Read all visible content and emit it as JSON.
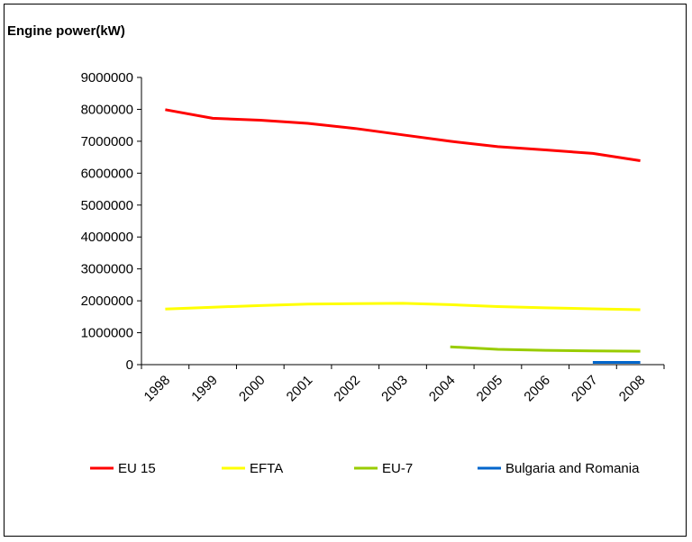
{
  "chart_data": {
    "type": "line",
    "title": "Engine power(kW)",
    "xlabel": "",
    "ylabel": "",
    "categories": [
      "1998",
      "1999",
      "2000",
      "2001",
      "2002",
      "2003",
      "2004",
      "2005",
      "2006",
      "2007",
      "2008"
    ],
    "ylim": [
      0,
      9000000
    ],
    "yticks": [
      "0",
      "1000000",
      "2000000",
      "3000000",
      "4000000",
      "5000000",
      "6000000",
      "7000000",
      "8000000",
      "9000000"
    ],
    "grid": false,
    "legend_position": "bottom",
    "series": [
      {
        "name": "EU 15",
        "color": "#ff0000",
        "values": [
          7990000,
          7720000,
          7660000,
          7560000,
          7400000,
          7200000,
          7000000,
          6830000,
          6730000,
          6620000,
          6390000
        ]
      },
      {
        "name": "EFTA",
        "color": "#ffff00",
        "values": [
          1740000,
          1800000,
          1850000,
          1900000,
          1910000,
          1920000,
          1880000,
          1820000,
          1780000,
          1750000,
          1720000
        ]
      },
      {
        "name": "EU-7",
        "color": "#99cc00",
        "values": [
          null,
          null,
          null,
          null,
          null,
          null,
          560000,
          480000,
          450000,
          430000,
          420000
        ]
      },
      {
        "name": "Bulgaria and Romania",
        "color": "#0066cc",
        "values": [
          null,
          null,
          null,
          null,
          null,
          null,
          null,
          null,
          null,
          70000,
          70000
        ]
      }
    ]
  }
}
